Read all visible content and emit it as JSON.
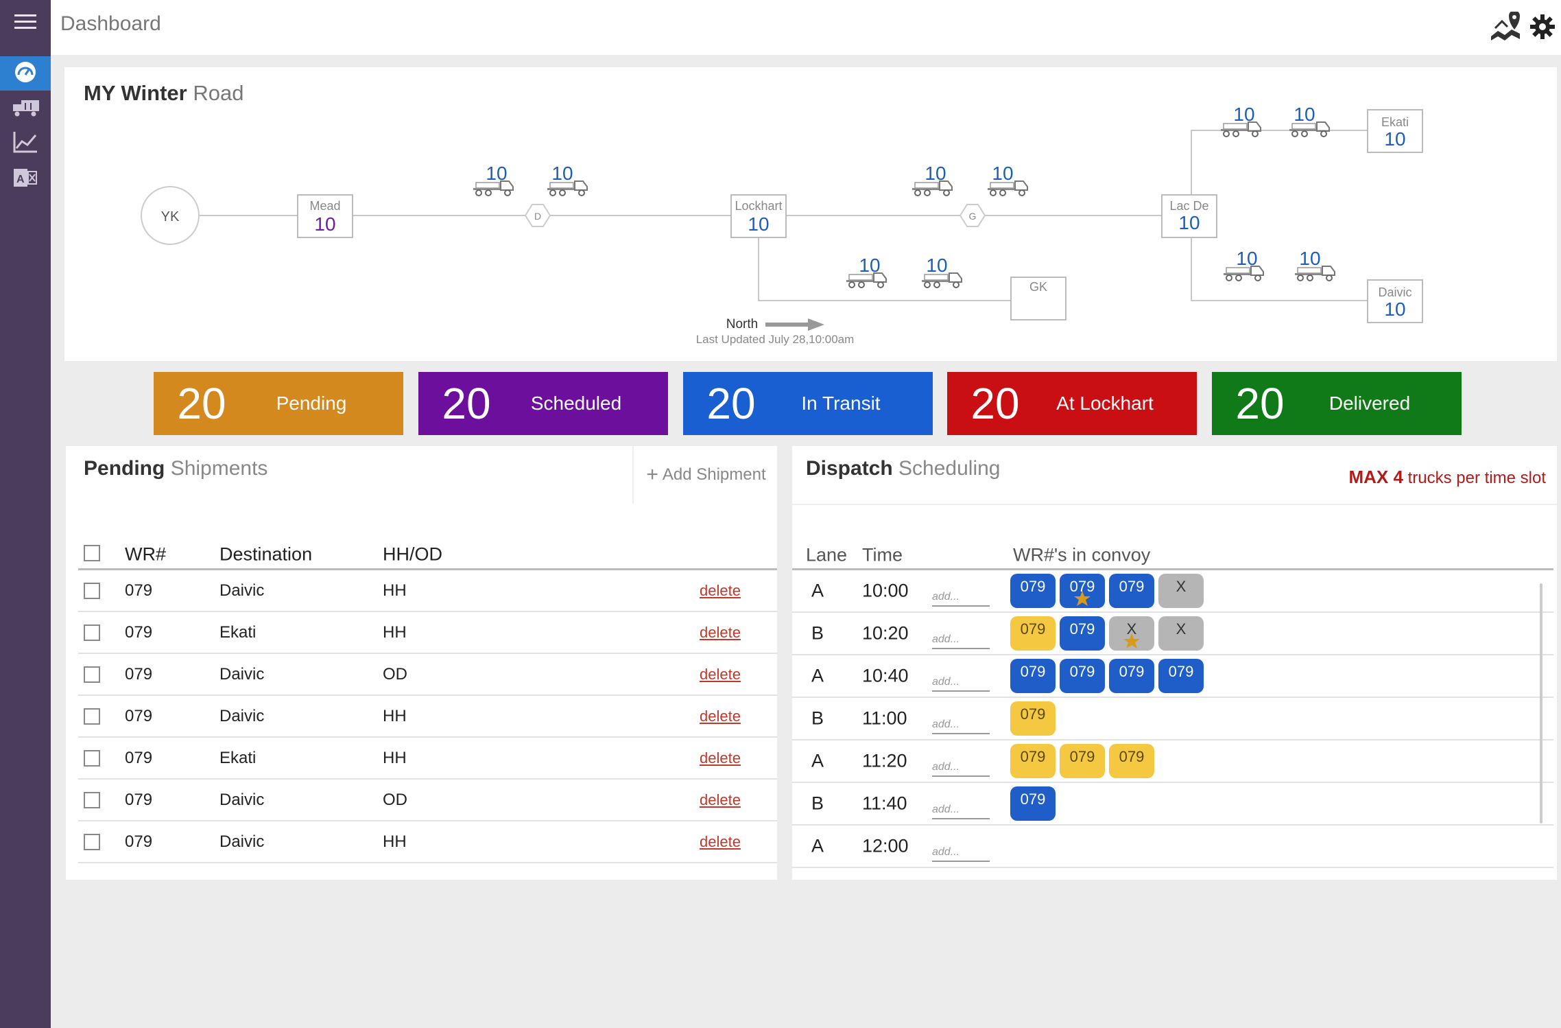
{
  "topbar": {
    "title": "Dashboard"
  },
  "sidebar": {
    "items": [
      {
        "name": "menu",
        "icon": "hamburger-icon"
      },
      {
        "name": "dashboard",
        "icon": "gauge-icon",
        "active": true
      },
      {
        "name": "fleet",
        "icon": "trucks-icon"
      },
      {
        "name": "reports",
        "icon": "chart-icon"
      },
      {
        "name": "export",
        "icon": "excel-icon"
      }
    ]
  },
  "map": {
    "title_bold": "MY Winter",
    "title_light": "Road",
    "origin": "YK",
    "nodes": [
      {
        "label": "Mead",
        "value": "10"
      },
      {
        "label": "Lockhart",
        "value": "10"
      },
      {
        "label": "Lac De",
        "value": "10"
      },
      {
        "label": "Ekati",
        "value": "10"
      },
      {
        "label": "Daivic",
        "value": "10"
      },
      {
        "label": "GK",
        "value": ""
      }
    ],
    "waypoints": [
      "D",
      "G"
    ],
    "trucks": [
      "10",
      "10",
      "10",
      "10",
      "10",
      "10",
      "10",
      "10",
      "10",
      "10"
    ],
    "direction": "North",
    "last_updated": "Last Updated July 28,10:00am"
  },
  "tiles": [
    {
      "count": "20",
      "label": "Pending",
      "color": "#d4891e"
    },
    {
      "count": "20",
      "label": "Scheduled",
      "color": "#6b0f9c"
    },
    {
      "count": "20",
      "label": "In Transit",
      "color": "#1a5fd1"
    },
    {
      "count": "20",
      "label": "At Lockhart",
      "color": "#c90e14"
    },
    {
      "count": "20",
      "label": "Delivered",
      "color": "#0f7a17"
    }
  ],
  "pending": {
    "title_bold": "Pending",
    "title_light": "Shipments",
    "add_label": "Add Shipment",
    "columns": [
      "WR#",
      "Destination",
      "HH/OD"
    ],
    "delete_label": "delete",
    "rows": [
      {
        "wr": "079",
        "dest": "Daivic",
        "type": "HH"
      },
      {
        "wr": "079",
        "dest": "Ekati",
        "type": "HH"
      },
      {
        "wr": "079",
        "dest": "Daivic",
        "type": "OD"
      },
      {
        "wr": "079",
        "dest": "Daivic",
        "type": "HH"
      },
      {
        "wr": "079",
        "dest": "Ekati",
        "type": "HH"
      },
      {
        "wr": "079",
        "dest": "Daivic",
        "type": "OD"
      },
      {
        "wr": "079",
        "dest": "Daivic",
        "type": "HH"
      }
    ]
  },
  "dispatch": {
    "title_bold": "Dispatch",
    "title_light": "Scheduling",
    "max_bold": "MAX 4",
    "max_text": "trucks per time slot",
    "columns": [
      "Lane",
      "Time",
      "WR#'s in convoy"
    ],
    "add_placeholder": "add...",
    "colors": {
      "blue": "#1f5ec9",
      "yellow": "#f5c842",
      "gray": "#b5b5b5",
      "star": "#d99a1a"
    },
    "rows": [
      {
        "lane": "A",
        "time": "10:00",
        "chips": [
          {
            "text": "079",
            "color": "blue",
            "star": false
          },
          {
            "text": "079",
            "color": "blue",
            "star": true
          },
          {
            "text": "079",
            "color": "blue",
            "star": false
          },
          {
            "text": "X",
            "color": "gray",
            "star": false
          }
        ]
      },
      {
        "lane": "B",
        "time": "10:20",
        "chips": [
          {
            "text": "079",
            "color": "yellow",
            "star": false
          },
          {
            "text": "079",
            "color": "blue",
            "star": false
          },
          {
            "text": "X",
            "color": "gray",
            "star": true
          },
          {
            "text": "X",
            "color": "gray",
            "star": false
          }
        ]
      },
      {
        "lane": "A",
        "time": "10:40",
        "chips": [
          {
            "text": "079",
            "color": "blue",
            "star": false
          },
          {
            "text": "079",
            "color": "blue",
            "star": false
          },
          {
            "text": "079",
            "color": "blue",
            "star": false
          },
          {
            "text": "079",
            "color": "blue",
            "star": false
          }
        ]
      },
      {
        "lane": "B",
        "time": "11:00",
        "chips": [
          {
            "text": "079",
            "color": "yellow",
            "star": false
          }
        ]
      },
      {
        "lane": "A",
        "time": "11:20",
        "chips": [
          {
            "text": "079",
            "color": "yellow",
            "star": false
          },
          {
            "text": "079",
            "color": "yellow",
            "star": false
          },
          {
            "text": "079",
            "color": "yellow",
            "star": false
          }
        ]
      },
      {
        "lane": "B",
        "time": "11:40",
        "chips": [
          {
            "text": "079",
            "color": "blue",
            "star": false
          }
        ]
      },
      {
        "lane": "A",
        "time": "12:00",
        "chips": []
      }
    ]
  }
}
